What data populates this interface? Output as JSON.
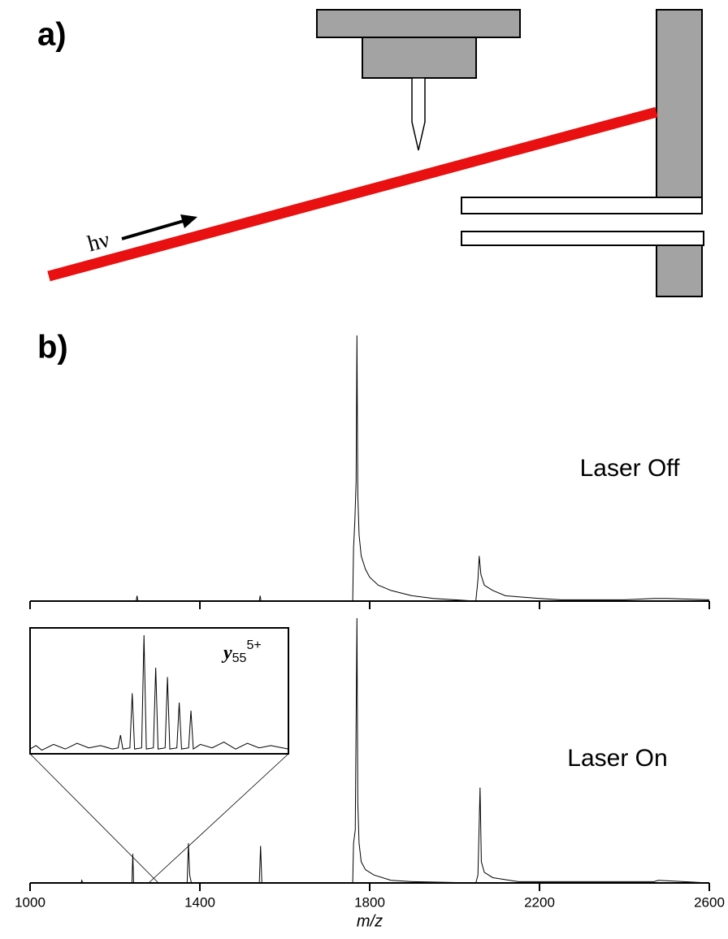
{
  "panel_a": {
    "label": "a)",
    "annotation": "hν"
  },
  "panel_b_label": "b)",
  "chart_data": [
    {
      "type": "line",
      "annotation": "Laser Off",
      "x": [
        1000,
        1250,
        1252,
        1254,
        1540,
        1542,
        1544,
        1760,
        1762,
        1765,
        1768,
        1770,
        1772,
        1775,
        1780,
        1790,
        1800,
        1820,
        1850,
        1900,
        1950,
        2000,
        2050,
        2055,
        2058,
        2062,
        2070,
        2090,
        2120,
        2200,
        2250,
        2400,
        2470,
        2500,
        2600
      ],
      "values": [
        0,
        0,
        2,
        0,
        0,
        2,
        0,
        0,
        20,
        30,
        45,
        100,
        40,
        25,
        17,
        12,
        9,
        6,
        4,
        2,
        1,
        0.5,
        0,
        8,
        17,
        10,
        6,
        4,
        2,
        1,
        0.5,
        0.5,
        1,
        1,
        0.5
      ],
      "xlim": [
        1000,
        2600
      ],
      "ylim": [
        0,
        100
      ]
    },
    {
      "type": "line",
      "annotation": "Laser On",
      "xlabel": "m/z",
      "x": [
        1000,
        1120,
        1122,
        1124,
        1240,
        1242,
        1244,
        1370,
        1373,
        1376,
        1380,
        1540,
        1543,
        1546,
        1760,
        1762,
        1766,
        1770,
        1772,
        1775,
        1780,
        1790,
        1810,
        1850,
        1900,
        2050,
        2055,
        2060,
        2063,
        2070,
        2090,
        2150,
        2470,
        2480,
        2600
      ],
      "values": [
        0,
        0,
        1,
        0,
        0,
        11,
        0,
        0,
        15,
        3,
        0,
        0,
        14,
        0,
        0,
        15,
        20,
        100,
        30,
        15,
        8,
        5,
        3,
        1,
        0.5,
        0,
        3,
        36,
        8,
        4,
        2,
        0.5,
        0.5,
        1,
        0
      ],
      "xlim": [
        1000,
        2600
      ],
      "ylim": [
        0,
        100
      ],
      "xticks": [
        1000,
        1400,
        1800,
        2200,
        2600
      ],
      "inset": {
        "label": {
          "ion": "y",
          "subscript": "55",
          "superscript": "5+"
        },
        "x": [
          1282,
          1282.1,
          1282.2,
          1282.4,
          1282.6,
          1282.8,
          1283,
          1283.2,
          1283.4,
          1283.5,
          1283.54,
          1283.58,
          1283.7,
          1283.74,
          1283.78,
          1283.9,
          1283.94,
          1283.98,
          1284.1,
          1284.14,
          1284.18,
          1284.3,
          1284.34,
          1284.38,
          1284.5,
          1284.54,
          1284.58,
          1284.7,
          1284.74,
          1284.78,
          1284.9,
          1285.1,
          1285.3,
          1285.5,
          1285.7,
          1285.9,
          1286.1,
          1286.4
        ],
        "values": [
          2,
          5,
          1,
          6,
          2,
          7,
          3,
          5,
          2,
          3,
          14,
          2,
          3,
          50,
          2,
          3,
          100,
          2,
          3,
          72,
          2,
          3,
          64,
          2,
          3,
          42,
          2,
          3,
          35,
          2,
          6,
          3,
          8,
          2,
          7,
          3,
          5,
          2
        ],
        "xlim": [
          1282,
          1286.4
        ],
        "ylim": [
          0,
          100
        ]
      }
    }
  ]
}
